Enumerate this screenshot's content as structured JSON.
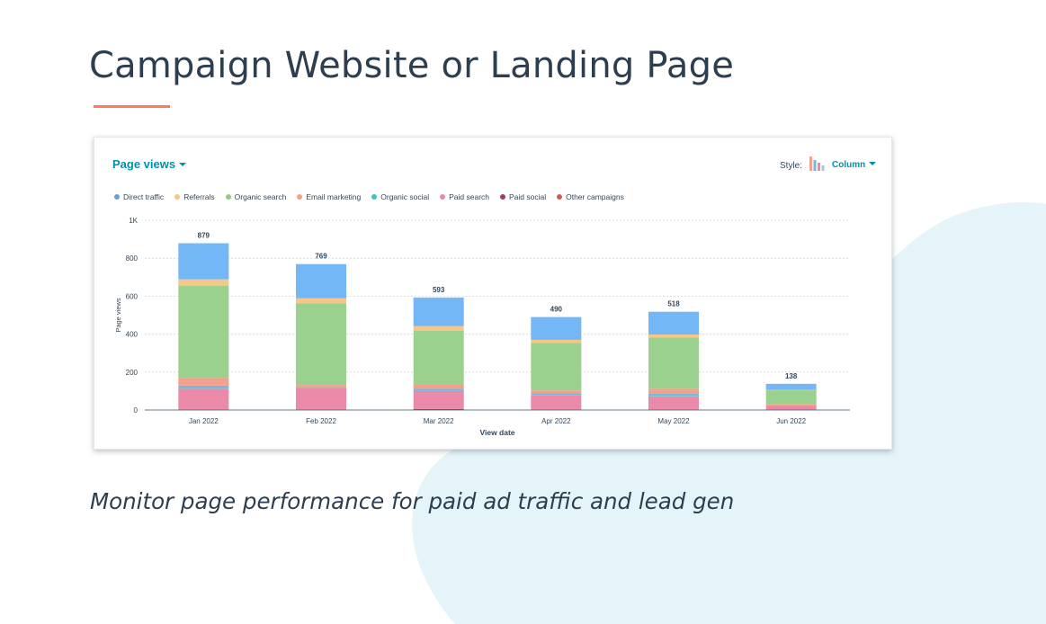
{
  "slide": {
    "title": "Campaign Website or Landing Page",
    "subtitle": "Monitor page performance for paid ad traffic and lead gen",
    "accent_color": "#ff7a59",
    "blob_color": "#e4f4f9"
  },
  "report": {
    "title": "Page views",
    "style_label": "Style:",
    "style_value": "Column",
    "style_icon": "column-chart-icon"
  },
  "chart_data": {
    "type": "bar",
    "stacked": true,
    "categories": [
      "Jan 2022",
      "Feb 2022",
      "Mar 2022",
      "Apr 2022",
      "May 2022",
      "Jun 2022"
    ],
    "totals": [
      879,
      769,
      593,
      490,
      518,
      138
    ],
    "ylabel": "Page views",
    "xlabel": "View date",
    "ylim": [
      0,
      1000
    ],
    "yticks": [
      0,
      200,
      400,
      600,
      800,
      1000
    ],
    "ytick_labels": [
      "0",
      "200",
      "400",
      "600",
      "800",
      "1K"
    ],
    "grid": true,
    "legend_position": "top-left",
    "series": [
      {
        "name": "Paid social",
        "color": "#a83a5f",
        "values": [
          2,
          2,
          5,
          2,
          2,
          2
        ]
      },
      {
        "name": "Paid search",
        "color": "#ea89a8",
        "values": [
          110,
          115,
          90,
          75,
          70,
          20
        ]
      },
      {
        "name": "Organic social",
        "color": "#4fc7c0",
        "values": [
          5,
          3,
          5,
          3,
          3,
          2
        ]
      },
      {
        "name": "Direct traffic",
        "color": "#7fb3d9",
        "values": [
          12,
          0,
          12,
          8,
          12,
          0
        ]
      },
      {
        "name": "Email marketing",
        "color": "#f5a08a",
        "values": [
          40,
          12,
          25,
          15,
          25,
          5
        ]
      },
      {
        "name": "Organic search",
        "color": "#9bd18e",
        "values": [
          485,
          430,
          280,
          250,
          270,
          75
        ]
      },
      {
        "name": "Referrals",
        "color": "#f6c588",
        "values": [
          35,
          27,
          26,
          17,
          16,
          2
        ]
      },
      {
        "name": "Other campaigns",
        "color": "#74b7f7",
        "values": [
          190,
          180,
          150,
          120,
          120,
          32
        ]
      }
    ],
    "legend_order": [
      "Direct traffic",
      "Referrals",
      "Organic search",
      "Email marketing",
      "Organic social",
      "Paid search",
      "Paid social",
      "Other campaigns"
    ],
    "legend_colors": {
      "Direct traffic": "#6b9ed1",
      "Referrals": "#f5c486",
      "Organic search": "#8fcd83",
      "Email marketing": "#f5a08a",
      "Organic social": "#3fc3bd",
      "Paid search": "#ea89a8",
      "Paid social": "#a83a5f",
      "Other campaigns": "#d45c50"
    }
  }
}
